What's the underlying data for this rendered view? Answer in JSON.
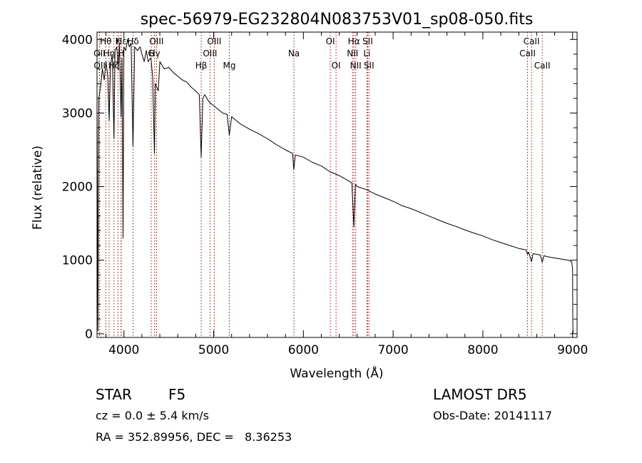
{
  "chart_data": {
    "type": "line",
    "title": "spec-56979-EG232804N083753V01_sp08-050.fits",
    "xlabel": "Wavelength (Å)",
    "ylabel": "Flux (relative)",
    "xlim": [
      3700,
      9050
    ],
    "ylim": [
      -50,
      4100
    ],
    "x_ticks": [
      4000,
      5000,
      6000,
      7000,
      8000,
      9000
    ],
    "x_tick_labels": [
      "4000",
      "5000",
      "6000",
      "7000",
      "8000",
      "9000"
    ],
    "y_ticks": [
      0,
      1000,
      2000,
      3000,
      4000
    ],
    "y_tick_labels": [
      "0",
      "1000",
      "2000",
      "3000",
      "4000"
    ],
    "grid": false,
    "series": [
      {
        "color": "#000000",
        "points": [
          [
            3700,
            3300
          ],
          [
            3710,
            40
          ],
          [
            3720,
            3200
          ],
          [
            3740,
            3350
          ],
          [
            3760,
            3600
          ],
          [
            3780,
            3450
          ],
          [
            3800,
            3700
          ],
          [
            3820,
            3500
          ],
          [
            3835,
            2900
          ],
          [
            3850,
            3650
          ],
          [
            3870,
            3800
          ],
          [
            3889,
            2650
          ],
          [
            3900,
            3850
          ],
          [
            3920,
            3900
          ],
          [
            3935,
            3600
          ],
          [
            3950,
            3950
          ],
          [
            3968,
            2950
          ],
          [
            3980,
            3750
          ],
          [
            3990,
            1300
          ],
          [
            4000,
            3900
          ],
          [
            4020,
            3850
          ],
          [
            4040,
            4000
          ],
          [
            4060,
            3900
          ],
          [
            4080,
            3950
          ],
          [
            4101,
            2550
          ],
          [
            4120,
            3900
          ],
          [
            4150,
            3850
          ],
          [
            4180,
            3900
          ],
          [
            4200,
            3800
          ],
          [
            4226,
            3700
          ],
          [
            4250,
            3850
          ],
          [
            4270,
            3700
          ],
          [
            4300,
            3750
          ],
          [
            4320,
            3500
          ],
          [
            4340,
            2450
          ],
          [
            4350,
            3400
          ],
          [
            4383,
            3300
          ],
          [
            4400,
            3700
          ],
          [
            4450,
            3600
          ],
          [
            4500,
            3620
          ],
          [
            4550,
            3550
          ],
          [
            4600,
            3500
          ],
          [
            4650,
            3450
          ],
          [
            4700,
            3420
          ],
          [
            4750,
            3350
          ],
          [
            4800,
            3300
          ],
          [
            4840,
            3250
          ],
          [
            4861,
            2400
          ],
          [
            4880,
            3200
          ],
          [
            4900,
            3250
          ],
          [
            4950,
            3150
          ],
          [
            5000,
            3100
          ],
          [
            5050,
            3050
          ],
          [
            5100,
            3000
          ],
          [
            5150,
            2980
          ],
          [
            5175,
            2700
          ],
          [
            5200,
            2950
          ],
          [
            5300,
            2850
          ],
          [
            5400,
            2780
          ],
          [
            5500,
            2720
          ],
          [
            5600,
            2650
          ],
          [
            5700,
            2570
          ],
          [
            5800,
            2500
          ],
          [
            5880,
            2450
          ],
          [
            5893,
            2230
          ],
          [
            5910,
            2430
          ],
          [
            6000,
            2400
          ],
          [
            6100,
            2330
          ],
          [
            6200,
            2280
          ],
          [
            6300,
            2200
          ],
          [
            6400,
            2150
          ],
          [
            6500,
            2080
          ],
          [
            6540,
            2050
          ],
          [
            6563,
            1450
          ],
          [
            6580,
            2030
          ],
          [
            6600,
            2000
          ],
          [
            6700,
            1960
          ],
          [
            6800,
            1900
          ],
          [
            6900,
            1850
          ],
          [
            7000,
            1800
          ],
          [
            7100,
            1740
          ],
          [
            7200,
            1700
          ],
          [
            7300,
            1650
          ],
          [
            7400,
            1600
          ],
          [
            7500,
            1550
          ],
          [
            7600,
            1500
          ],
          [
            7700,
            1460
          ],
          [
            7800,
            1410
          ],
          [
            7900,
            1370
          ],
          [
            8000,
            1330
          ],
          [
            8100,
            1280
          ],
          [
            8200,
            1240
          ],
          [
            8300,
            1200
          ],
          [
            8400,
            1160
          ],
          [
            8480,
            1140
          ],
          [
            8498,
            1080
          ],
          [
            8510,
            1110
          ],
          [
            8542,
            980
          ],
          [
            8560,
            1090
          ],
          [
            8600,
            1080
          ],
          [
            8640,
            1070
          ],
          [
            8662,
            970
          ],
          [
            8680,
            1060
          ],
          [
            8750,
            1040
          ],
          [
            8800,
            1030
          ],
          [
            8850,
            1020
          ],
          [
            8900,
            1010
          ],
          [
            8950,
            1000
          ],
          [
            8990,
            980
          ],
          [
            9000,
            880
          ],
          [
            9002,
            180
          ],
          [
            9005,
            0
          ]
        ]
      }
    ],
    "lines": [
      {
        "label": "OII",
        "x": 3727,
        "row": 2
      },
      {
        "label": "OII",
        "x": 3729,
        "row": 3
      },
      {
        "label": "Hθ",
        "x": 3798,
        "row": 1
      },
      {
        "label": "Hη",
        "x": 3835,
        "row": 2
      },
      {
        "label": "Hζ",
        "x": 3889,
        "row": 3
      },
      {
        "label": "K",
        "x": 3934,
        "row": 1
      },
      {
        "label": "H",
        "x": 3968,
        "row": 2
      },
      {
        "label": "Hε",
        "x": 3970,
        "row": 1
      },
      {
        "label": "Hδ",
        "x": 4102,
        "row": 1
      },
      {
        "label": "G",
        "x": 4304,
        "row": 2
      },
      {
        "label": "Hγ",
        "x": 4341,
        "row": 2
      },
      {
        "label": "OIII",
        "x": 4363,
        "row": 1
      },
      {
        "label": "Hβ",
        "x": 4861,
        "row": 3
      },
      {
        "label": "OIII",
        "x": 4959,
        "row": 2
      },
      {
        "label": "OIII",
        "x": 5007,
        "row": 1
      },
      {
        "label": "Mg",
        "x": 5175,
        "row": 3
      },
      {
        "label": "Na",
        "x": 5894,
        "row": 2
      },
      {
        "label": "OI",
        "x": 6300,
        "row": 1
      },
      {
        "label": "OI",
        "x": 6364,
        "row": 3
      },
      {
        "label": "NII",
        "x": 6548,
        "row": 2
      },
      {
        "label": "Hα",
        "x": 6563,
        "row": 1
      },
      {
        "label": "NII",
        "x": 6583,
        "row": 3
      },
      {
        "label": "Li",
        "x": 6708,
        "row": 2
      },
      {
        "label": "SII",
        "x": 6716,
        "row": 1
      },
      {
        "label": "SII",
        "x": 6731,
        "row": 3
      },
      {
        "label": "CaII",
        "x": 8498,
        "row": 2
      },
      {
        "label": "CaII",
        "x": 8542,
        "row": 1
      },
      {
        "label": "CaII",
        "x": 8662,
        "row": 3
      }
    ],
    "line_color": "#cc0000"
  },
  "info": {
    "class": "STAR",
    "subclass": "F5",
    "survey": "LAMOST DR5",
    "redshift": "cz = 0.0 ± 5.4 km/s",
    "obs_date": "Obs-Date: 20141117",
    "coords": "RA = 352.89956, DEC =   8.36253"
  }
}
